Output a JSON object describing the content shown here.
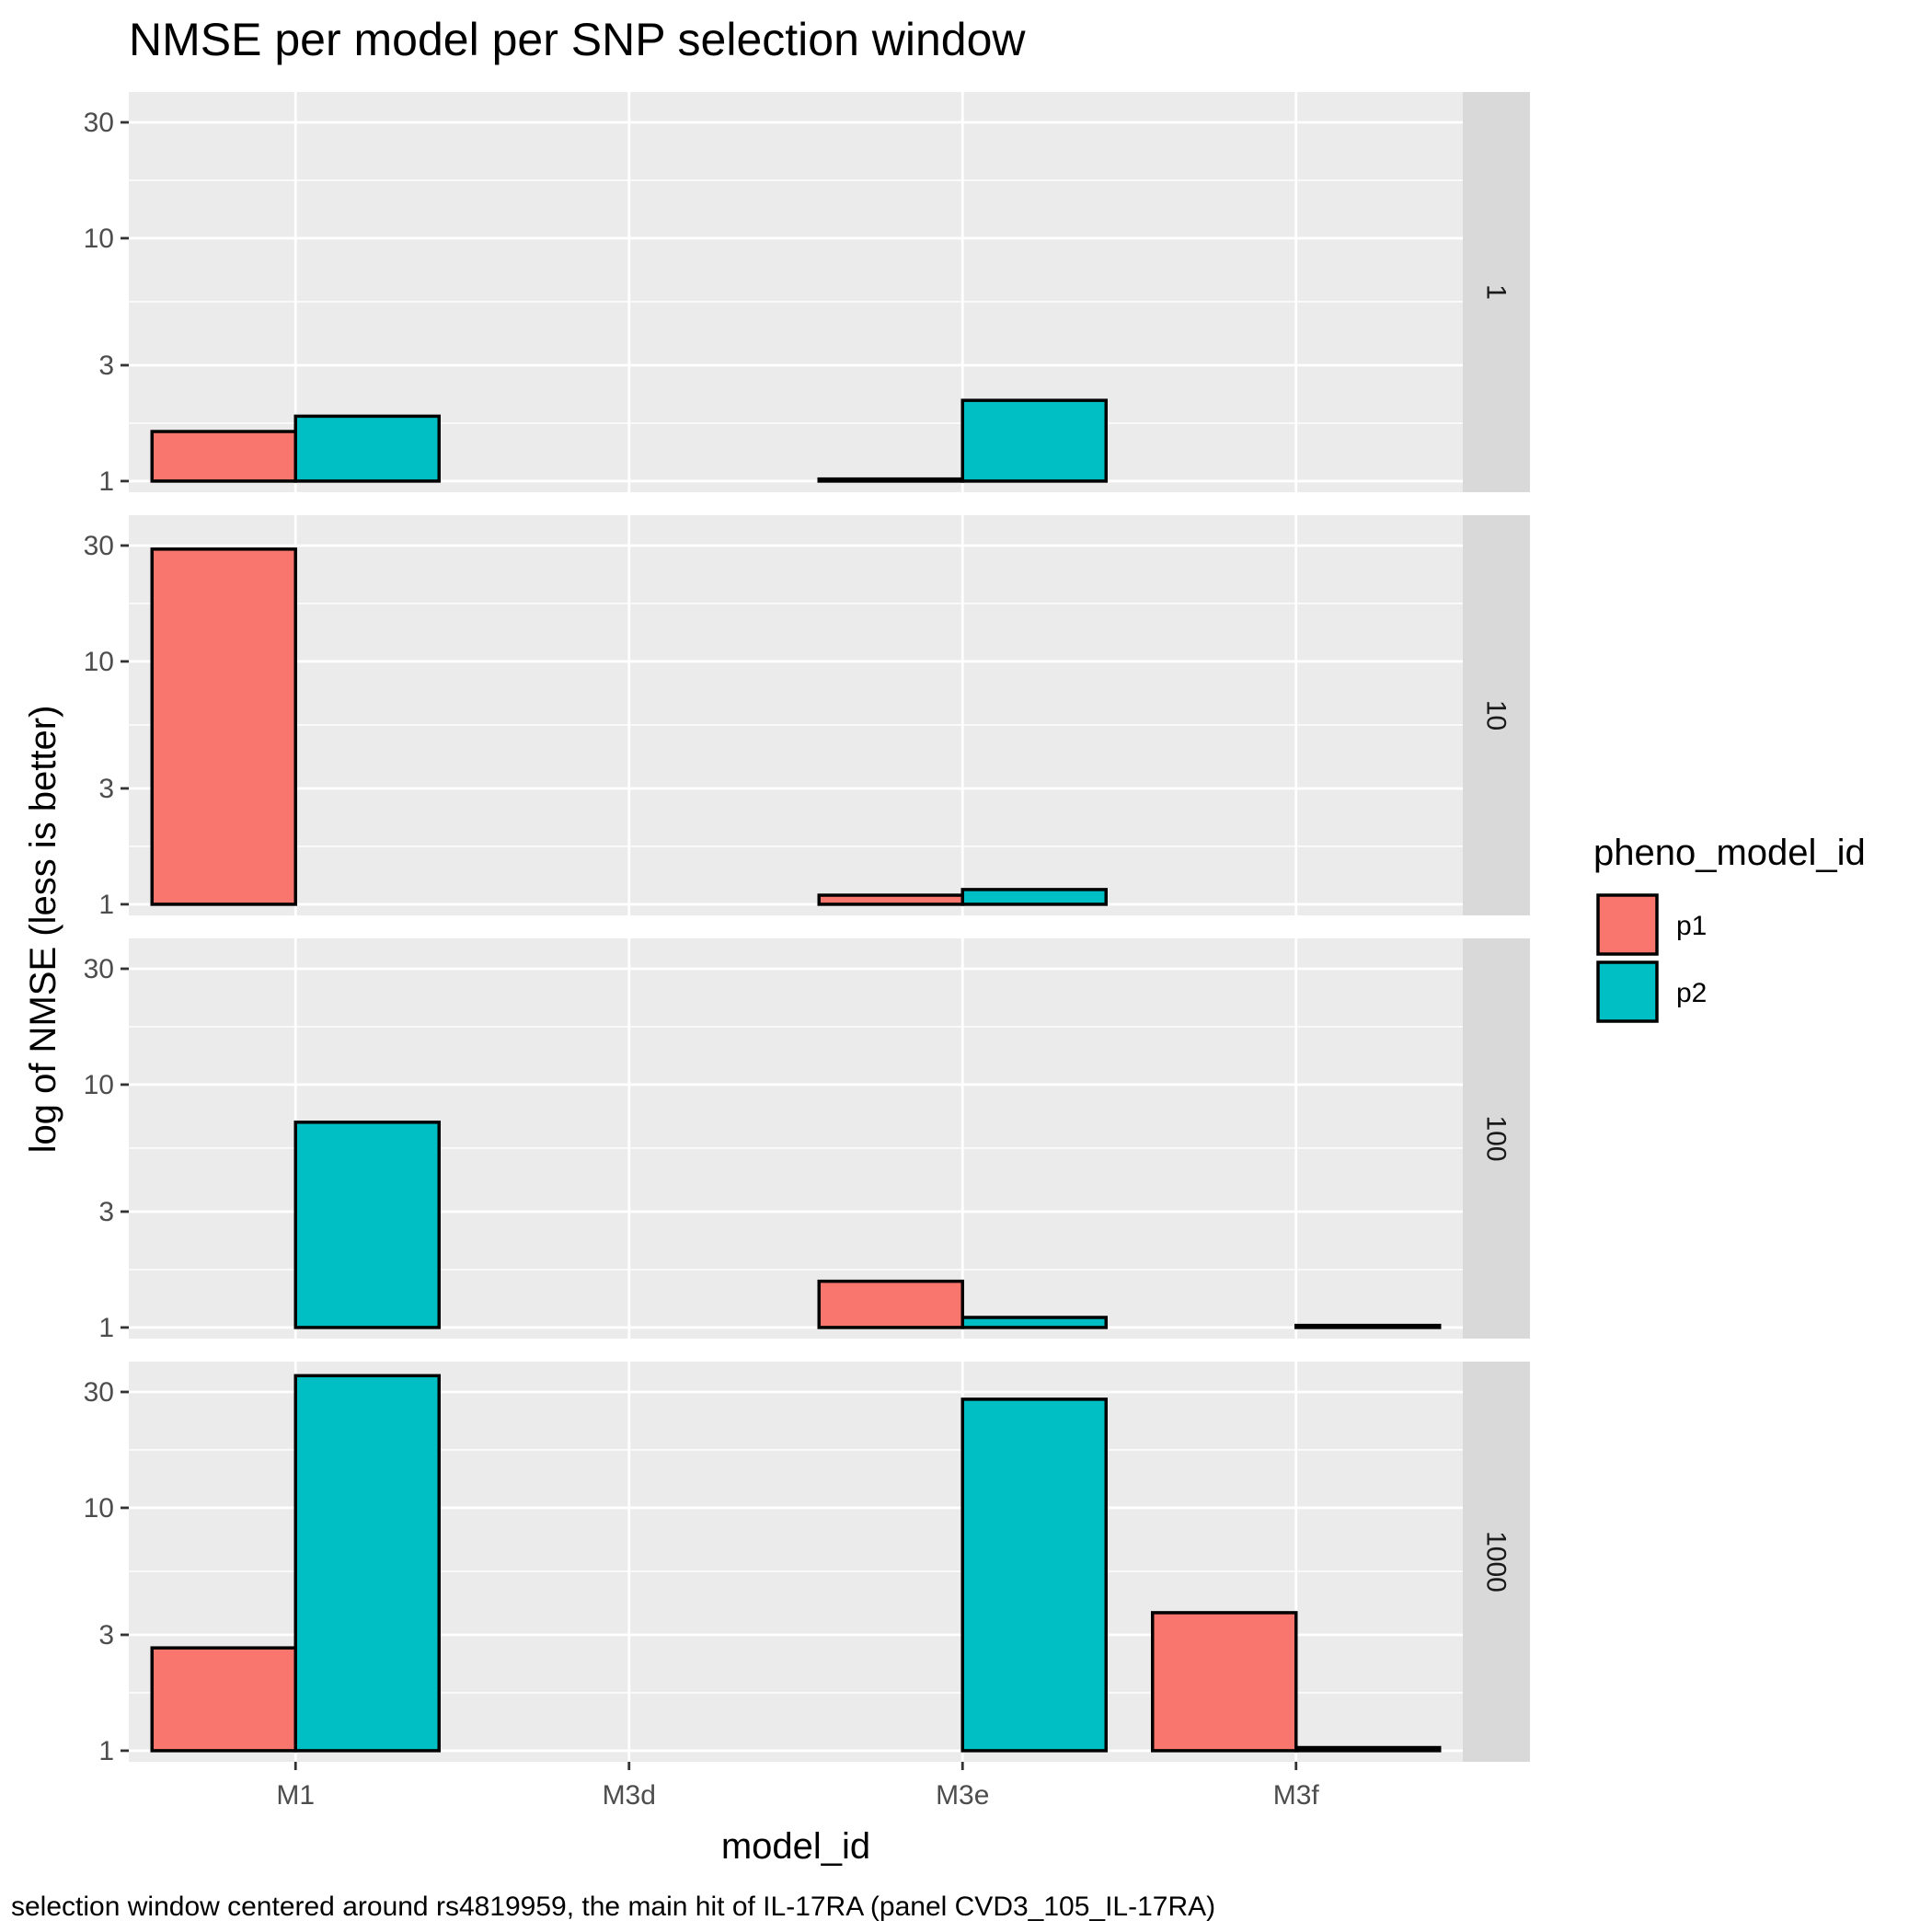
{
  "chart_data": {
    "type": "bar",
    "title": "NMSE per model per SNP selection window",
    "xlabel": "model_id",
    "ylabel": "log of NMSE (less is better)",
    "caption": "selection window centered around rs4819959, the main hit of IL-17RA (panel CVD3_105_IL-17RA)",
    "y_scale": "log10",
    "ylim": [
      0.9,
      40
    ],
    "y_ticks": [
      1,
      3,
      10,
      30
    ],
    "y_tick_labels": [
      "1",
      "3",
      "10",
      "30"
    ],
    "categories": [
      "M1",
      "M3d",
      "M3e",
      "M3f"
    ],
    "grid": true,
    "legend": {
      "title": "pheno_model_id",
      "position": "right",
      "items": [
        {
          "label": "p1",
          "color": "#F8766D"
        },
        {
          "label": "p2",
          "color": "#00BFC4"
        }
      ]
    },
    "panels": [
      {
        "label": "1",
        "series": [
          {
            "name": "p1",
            "values": [
              1.6,
              1.0,
              1.02,
              1.0
            ]
          },
          {
            "name": "p2",
            "values": [
              1.85,
              null,
              2.15,
              1.0
            ]
          }
        ]
      },
      {
        "label": "10",
        "series": [
          {
            "name": "p1",
            "values": [
              29,
              null,
              1.09,
              1.0
            ]
          },
          {
            "name": "p2",
            "values": [
              1.0,
              1.0,
              1.15,
              1.0
            ]
          }
        ]
      },
      {
        "label": "100",
        "series": [
          {
            "name": "p1",
            "values": [
              null,
              1.0,
              1.55,
              1.0
            ]
          },
          {
            "name": "p2",
            "values": [
              7.0,
              1.0,
              1.1,
              1.02
            ]
          }
        ]
      },
      {
        "label": "1000",
        "series": [
          {
            "name": "p1",
            "values": [
              2.65,
              1.0,
              null,
              3.7
            ]
          },
          {
            "name": "p2",
            "values": [
              35,
              1.0,
              28,
              1.03
            ]
          }
        ]
      }
    ]
  }
}
